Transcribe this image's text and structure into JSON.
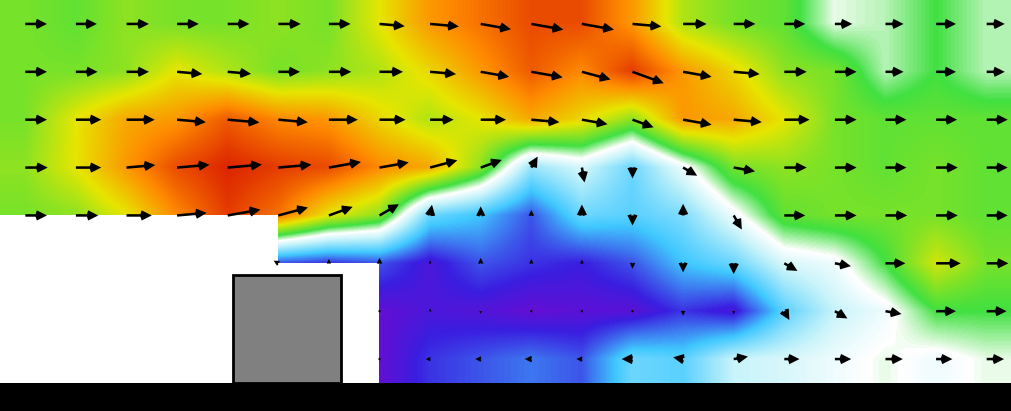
{
  "chart_data": {
    "type": "vector_field",
    "tick_labels": false,
    "speed_range": [
      0,
      1
    ],
    "speed": [
      [
        0.6,
        0.58,
        0.62,
        0.6,
        0.6,
        0.62,
        0.6,
        0.7,
        0.8,
        0.85,
        0.9,
        0.9,
        0.8,
        0.65,
        0.6,
        0.58,
        0.48,
        0.5,
        0.55,
        0.5
      ],
      [
        0.6,
        0.6,
        0.62,
        0.7,
        0.65,
        0.6,
        0.62,
        0.65,
        0.72,
        0.8,
        0.88,
        0.82,
        0.92,
        0.8,
        0.72,
        0.62,
        0.6,
        0.5,
        0.55,
        0.5
      ],
      [
        0.6,
        0.7,
        0.78,
        0.8,
        0.88,
        0.82,
        0.8,
        0.72,
        0.65,
        0.7,
        0.78,
        0.72,
        0.62,
        0.8,
        0.78,
        0.7,
        0.6,
        0.58,
        0.58,
        0.58
      ],
      [
        0.62,
        0.7,
        0.8,
        0.9,
        0.95,
        0.92,
        0.9,
        0.82,
        0.78,
        0.62,
        0.35,
        0.42,
        0.3,
        0.45,
        0.6,
        0.62,
        0.6,
        0.58,
        0.6,
        0.58
      ],
      [
        0.6,
        0.62,
        0.7,
        0.82,
        0.92,
        0.85,
        0.7,
        0.62,
        0.3,
        0.25,
        0.15,
        0.3,
        0.28,
        0.32,
        0.45,
        0.58,
        0.6,
        0.6,
        0.6,
        0.58
      ],
      [
        null,
        null,
        null,
        null,
        null,
        0.15,
        0.12,
        0.15,
        0.08,
        0.15,
        0.12,
        0.1,
        0.15,
        0.25,
        0.3,
        0.42,
        0.45,
        0.55,
        0.68,
        0.6
      ],
      [
        null,
        null,
        null,
        null,
        null,
        null,
        null,
        0.05,
        0.08,
        0.07,
        0.05,
        0.06,
        0.06,
        0.12,
        0.08,
        0.28,
        0.4,
        0.45,
        0.55,
        0.55
      ],
      [
        null,
        null,
        null,
        null,
        null,
        null,
        null,
        0.05,
        0.12,
        0.15,
        0.18,
        0.15,
        0.3,
        0.28,
        0.4,
        0.42,
        0.45,
        0.48,
        0.45,
        0.48
      ]
    ],
    "angle": [
      [
        0,
        0,
        0,
        0,
        0,
        0,
        0,
        -5,
        -5,
        -10,
        -10,
        -10,
        -5,
        0,
        0,
        0,
        0,
        0,
        0,
        0
      ],
      [
        0,
        0,
        0,
        -5,
        -5,
        0,
        0,
        0,
        -5,
        -10,
        -10,
        -15,
        -20,
        -10,
        -5,
        0,
        0,
        0,
        0,
        0
      ],
      [
        0,
        0,
        0,
        -5,
        -5,
        -5,
        0,
        0,
        0,
        0,
        -5,
        -10,
        -20,
        -10,
        -5,
        0,
        0,
        0,
        0,
        0
      ],
      [
        0,
        0,
        5,
        5,
        5,
        5,
        10,
        10,
        15,
        20,
        60,
        -80,
        -90,
        -30,
        -10,
        0,
        0,
        0,
        0,
        0
      ],
      [
        0,
        0,
        0,
        5,
        10,
        15,
        20,
        30,
        80,
        90,
        90,
        90,
        -90,
        90,
        -60,
        0,
        0,
        0,
        0,
        0
      ],
      [
        null,
        null,
        null,
        null,
        null,
        150,
        90,
        90,
        90,
        90,
        90,
        90,
        -90,
        -90,
        -90,
        -30,
        -10,
        0,
        0,
        0
      ],
      [
        null,
        null,
        null,
        null,
        null,
        null,
        null,
        180,
        90,
        -90,
        90,
        -90,
        -90,
        -90,
        -90,
        -60,
        -30,
        -10,
        0,
        0
      ],
      [
        null,
        null,
        null,
        null,
        null,
        null,
        null,
        180,
        180,
        180,
        180,
        180,
        180,
        170,
        10,
        0,
        0,
        0,
        0,
        0
      ]
    ]
  }
}
